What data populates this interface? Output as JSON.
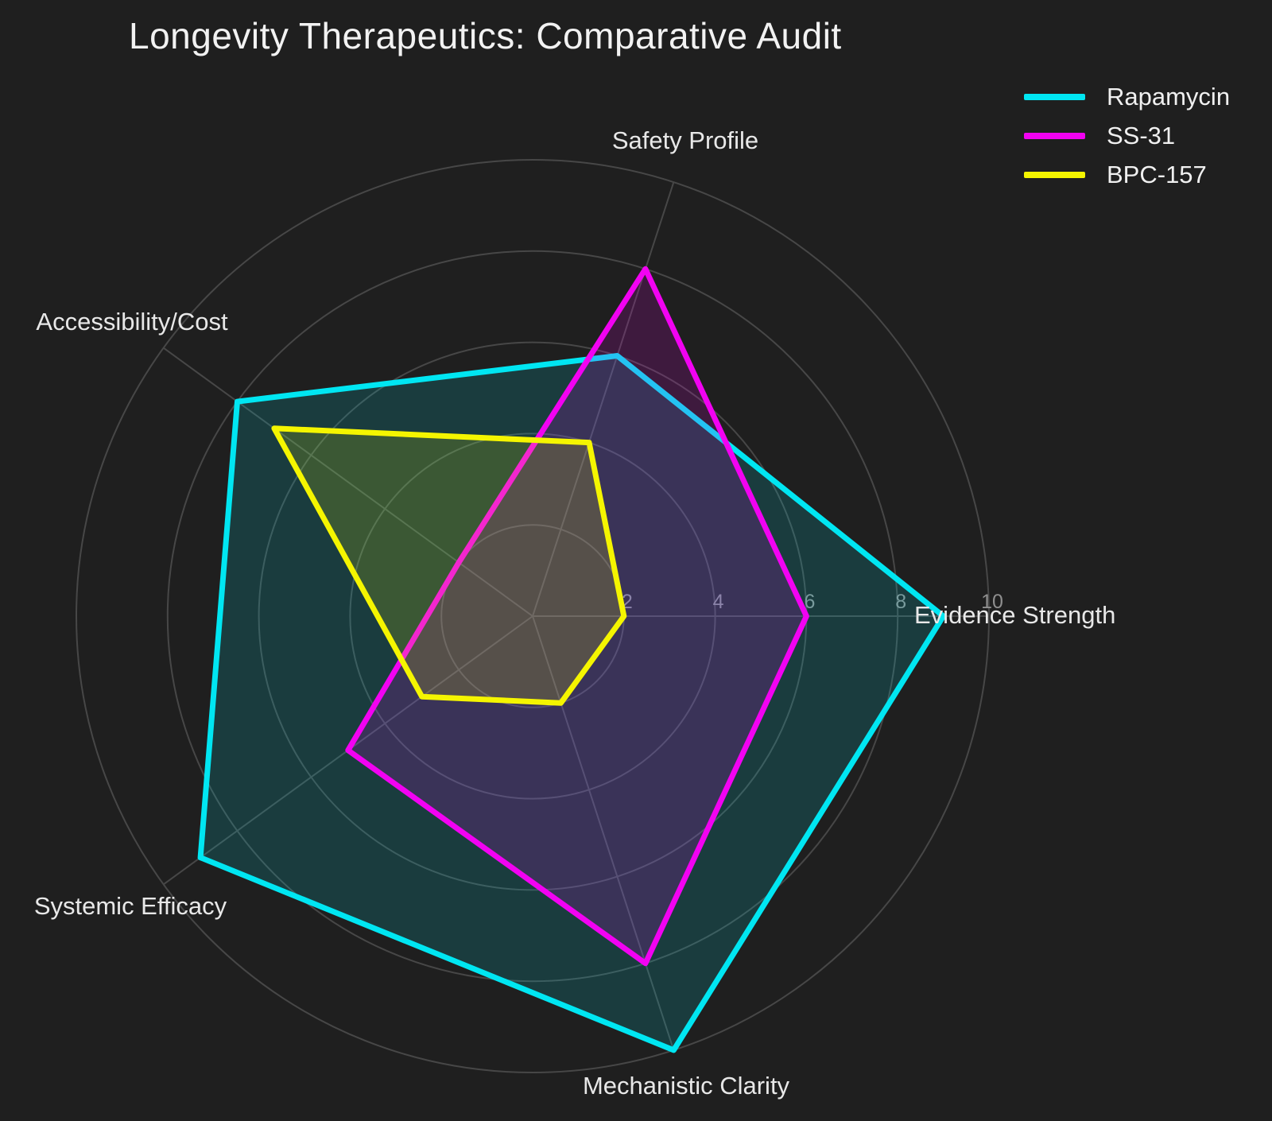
{
  "title": "Longevity Therapeutics: Comparative Audit",
  "colors": {
    "background": "#1f1f1f",
    "grid": "#474747",
    "title_text": "#f2f2f2",
    "axis_label_text": "#e8e8e8",
    "tick_text": "#8f8f8f"
  },
  "legend": {
    "position": "top-right",
    "items": [
      {
        "label": "Rapamycin",
        "color": "#00e6f2"
      },
      {
        "label": "SS-31",
        "color": "#f202f2"
      },
      {
        "label": "BPC-157",
        "color": "#f5f500"
      }
    ]
  },
  "chart_data": {
    "type": "radar",
    "title": "Longevity Therapeutics: Comparative Audit",
    "categories": [
      "Evidence Strength",
      "Safety Profile",
      "Accessibility/Cost",
      "Systemic Efficacy",
      "Mechanistic Clarity"
    ],
    "series": [
      {
        "name": "Rapamycin",
        "color": "#00e6f2",
        "values": [
          9,
          6,
          8,
          9,
          10
        ]
      },
      {
        "name": "SS-31",
        "color": "#f202f2",
        "values": [
          6,
          8,
          2,
          5,
          8
        ]
      },
      {
        "name": "BPC-157",
        "color": "#f5f500",
        "values": [
          2,
          4,
          7,
          3,
          2
        ]
      }
    ],
    "radial_ticks": [
      2,
      4,
      6,
      8,
      10
    ],
    "radial_range": [
      0,
      10
    ],
    "start_angle_deg": 0,
    "direction": "counterclockwise",
    "fill_alpha": 0.15,
    "grid": true,
    "grid_shape": "circular",
    "legend_position": "top-right"
  }
}
